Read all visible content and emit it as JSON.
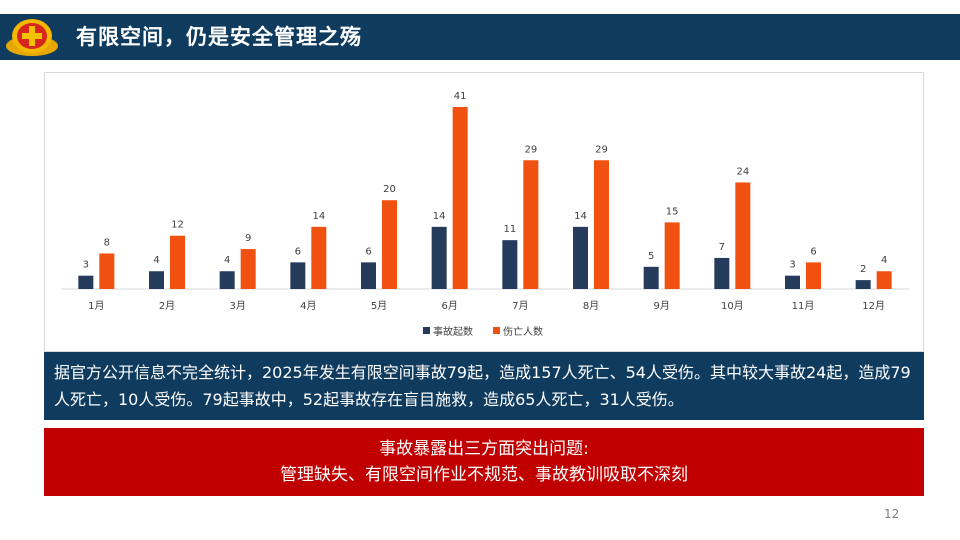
{
  "header": {
    "title": "有限空间，仍是安全管理之殇"
  },
  "chart_data": {
    "type": "bar",
    "categories": [
      "1月",
      "2月",
      "3月",
      "4月",
      "5月",
      "6月",
      "7月",
      "8月",
      "9月",
      "10月",
      "11月",
      "12月"
    ],
    "series": [
      {
        "name": "事故起数",
        "color": "#243b5c",
        "values": [
          3,
          4,
          4,
          6,
          6,
          14,
          11,
          14,
          5,
          7,
          3,
          2
        ]
      },
      {
        "name": "伤亡人数",
        "color": "#f05010",
        "values": [
          8,
          12,
          9,
          14,
          20,
          41,
          29,
          29,
          15,
          24,
          6,
          4
        ]
      }
    ],
    "ylim": [
      0,
      41
    ],
    "grid": false,
    "legend_position": "bottom-center"
  },
  "stats_text": "据官方公开信息不完全统计，2025年发生有限空间事故79起，造成157人死亡、54人受伤。其中较大事故24起，造成79人死亡，10人受伤。79起事故中，52起事故存在盲目施救，造成65人死亡，31人受伤。",
  "problems": {
    "heading": "事故暴露出三方面突出问题:",
    "items": "管理缺失、有限空间作业不规范、事故教训吸取不深刻"
  },
  "page_number": "12"
}
